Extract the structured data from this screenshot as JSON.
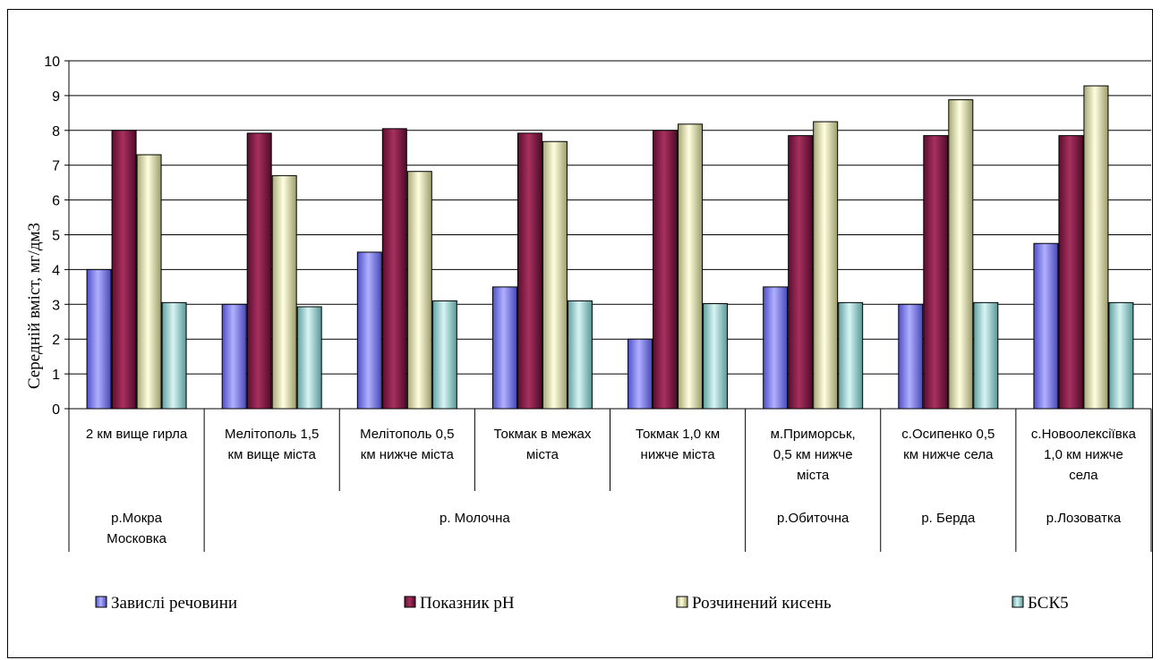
{
  "chart_data": {
    "type": "bar",
    "ylabel": "Середній вміст, мг/дм3",
    "ylim": [
      0,
      10
    ],
    "yticks": [
      "0",
      "1",
      "2",
      "3",
      "4",
      "5",
      "6",
      "7",
      "8",
      "9",
      "10"
    ],
    "grid": "horizontal",
    "legend_position": "bottom",
    "categories": [
      [
        "2 км вище гирла"
      ],
      [
        "Мелітополь 1,5",
        "км вище міста"
      ],
      [
        "Мелітополь 0,5",
        "км нижче міста"
      ],
      [
        "Токмак в межах",
        "міста"
      ],
      [
        "Токмак 1,0 км",
        "нижче міста"
      ],
      [
        "м.Приморськ,",
        "0,5 км нижче",
        "міста"
      ],
      [
        "с.Осипенко 0,5",
        "км нижче села"
      ],
      [
        "с.Новоолексіївка",
        "1,0 км нижче",
        "села"
      ]
    ],
    "groups": [
      {
        "label": [
          "р.Мокра",
          "Московка"
        ],
        "start": 0,
        "end": 0
      },
      {
        "label": [
          "р. Молочна"
        ],
        "start": 1,
        "end": 4
      },
      {
        "label": [
          "р.Обиточна"
        ],
        "start": 5,
        "end": 5
      },
      {
        "label": [
          "р. Берда"
        ],
        "start": 6,
        "end": 6
      },
      {
        "label": [
          "р.Лозоватка"
        ],
        "start": 7,
        "end": 7
      }
    ],
    "series": [
      {
        "name": "Завислі речовини",
        "color": "#8080ff",
        "values": [
          4.0,
          3.0,
          4.5,
          3.5,
          2.0,
          3.5,
          3.0,
          4.75
        ]
      },
      {
        "name": "Показник рН",
        "color": "#8b1a4a",
        "values": [
          8.0,
          7.92,
          8.05,
          7.92,
          8.0,
          7.85,
          7.85,
          7.85
        ]
      },
      {
        "name": "Розчинений кисень",
        "color": "#ffffcc",
        "values": [
          7.3,
          6.7,
          6.82,
          7.68,
          8.18,
          8.25,
          8.88,
          9.28
        ]
      },
      {
        "name": "БСК5",
        "color": "#a6e0e0",
        "values": [
          3.05,
          2.93,
          3.1,
          3.1,
          3.02,
          3.05,
          3.05,
          3.05
        ]
      }
    ]
  }
}
